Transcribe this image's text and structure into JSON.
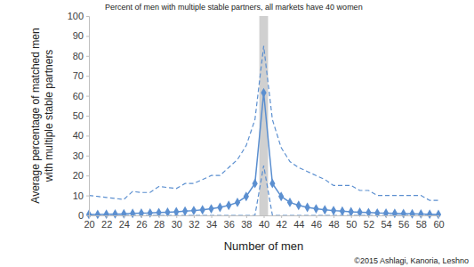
{
  "chart_data": {
    "type": "line",
    "title": "Percent of men with multiple stable partners, all markets have 40 women",
    "x_label": "Number of men",
    "y_label": [
      "Average percentage of matched men",
      "with multiple stable partners"
    ],
    "annotations": [
      "©2015 Ashlagi, Kanoria, Leshno"
    ],
    "x": [
      20,
      21,
      22,
      23,
      24,
      25,
      26,
      27,
      28,
      29,
      30,
      31,
      32,
      33,
      34,
      35,
      36,
      37,
      38,
      39,
      40,
      41,
      42,
      43,
      44,
      45,
      46,
      47,
      48,
      49,
      50,
      51,
      52,
      53,
      54,
      55,
      56,
      57,
      58,
      59,
      60
    ],
    "series": [
      {
        "color": "#5b8fd0",
        "marker": "diamond",
        "line_style": "solid",
        "values": [
          0.5,
          0.5,
          0.6,
          0.7,
          0.8,
          1,
          1.1,
          1.2,
          1.4,
          1.6,
          1.8,
          2.1,
          2.4,
          2.8,
          3.3,
          4,
          5,
          6.5,
          9.5,
          16,
          61.5,
          16,
          9.5,
          6.5,
          5,
          4,
          3.3,
          2.8,
          2.4,
          2.1,
          1.8,
          1.6,
          1.4,
          1.2,
          1.1,
          1,
          0.9,
          0.8,
          0.7,
          0.6,
          0.5
        ]
      },
      {
        "color": "#5b8fd0",
        "marker": "none",
        "line_style": "dashed",
        "values": [
          10,
          9.5,
          9,
          8.5,
          8,
          12,
          11.5,
          11.5,
          14.5,
          14,
          13.5,
          16,
          16,
          18,
          20,
          20,
          24,
          28,
          35,
          48,
          85,
          48,
          34,
          27,
          24,
          22,
          20,
          18,
          15,
          15,
          15,
          12.5,
          12.5,
          10,
          10,
          10,
          10,
          10,
          10,
          7.5,
          7.5
        ]
      },
      {
        "color": "#5b8fd0",
        "marker": "none",
        "line_style": "dashed",
        "values": [
          0,
          0,
          0,
          0,
          0,
          0,
          0,
          0,
          0,
          0,
          0,
          0,
          0,
          0,
          0,
          0,
          0,
          0,
          0,
          0,
          25,
          0,
          0,
          0,
          0,
          0,
          0,
          0,
          0,
          0,
          0,
          0,
          0,
          0,
          0,
          0,
          0,
          0,
          0,
          0,
          0
        ]
      }
    ],
    "highlight_band": [
      39.5,
      40.5
    ],
    "xlim": [
      20,
      60
    ],
    "xticks": [
      20,
      22,
      24,
      26,
      28,
      30,
      32,
      34,
      36,
      38,
      40,
      42,
      44,
      46,
      48,
      50,
      52,
      54,
      56,
      58,
      60
    ],
    "ylim": [
      0,
      100
    ],
    "yticks": [
      0,
      10,
      20,
      30,
      40,
      50,
      60,
      70,
      80,
      90,
      100
    ],
    "grid": false
  }
}
